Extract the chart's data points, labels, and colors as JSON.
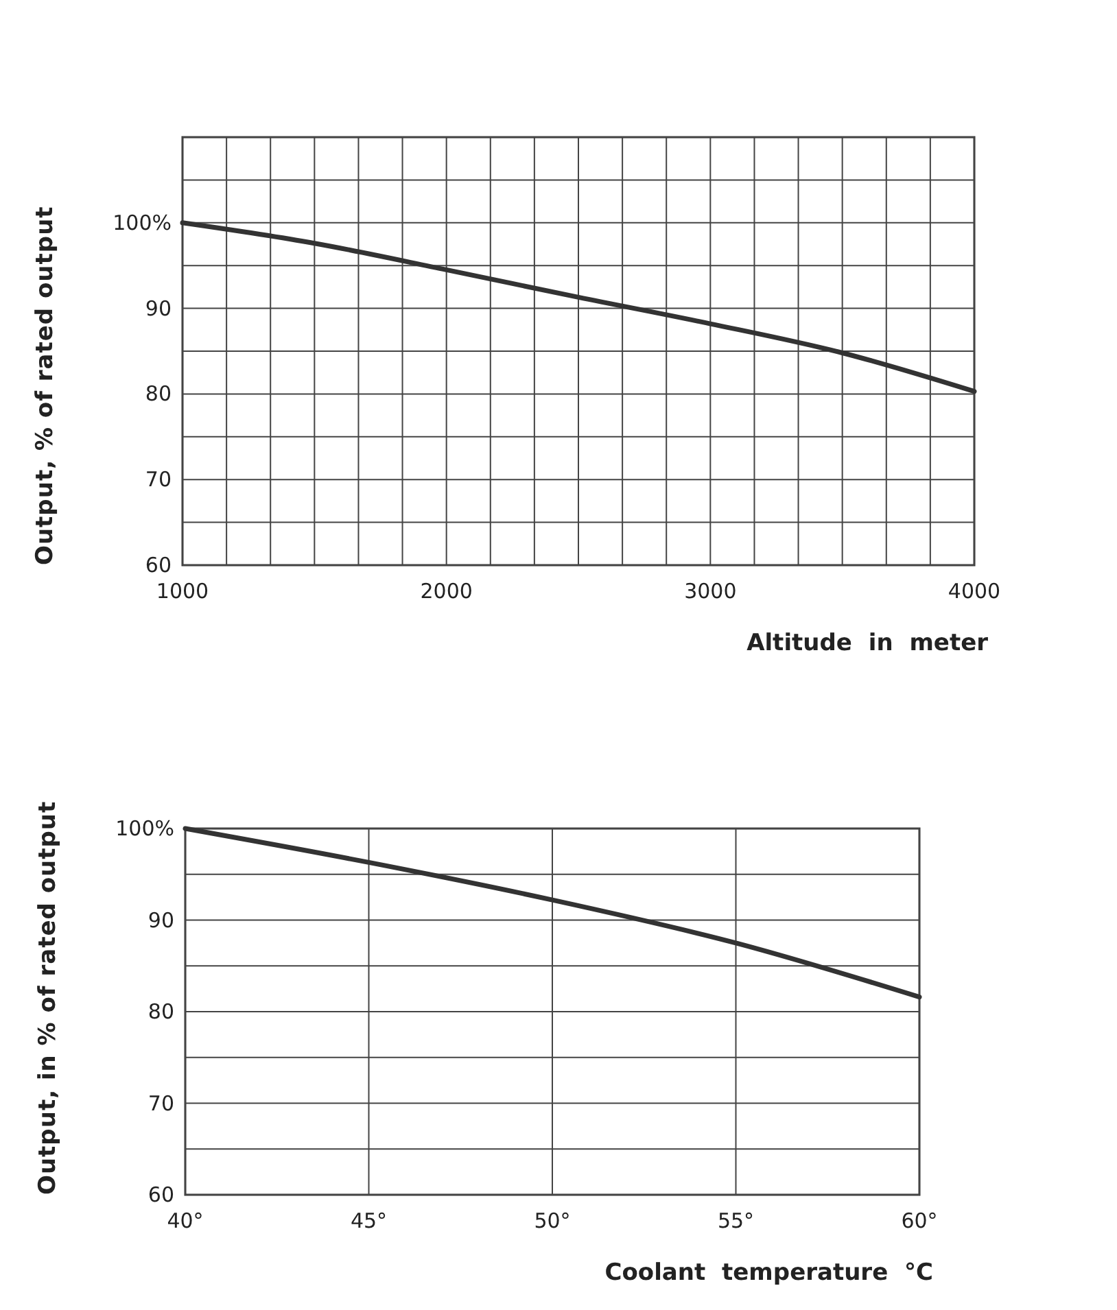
{
  "chart_data": [
    {
      "type": "line",
      "xlabel": "Altitude in meter",
      "ylabel": "Output, % of rated output",
      "x": [
        1000,
        1500,
        2000,
        2500,
        3000,
        3500,
        4000
      ],
      "series": [
        {
          "color": "#333333",
          "values": [
            100,
            97.6,
            94.5,
            91.3,
            88.2,
            84.8,
            80.3
          ]
        }
      ],
      "xlim": [
        1000,
        4000
      ],
      "xticks": [
        1000,
        {
          "value": 1166.7,
          "label": null
        },
        {
          "value": 1333.3,
          "label": null
        },
        {
          "value": 1500,
          "label": null
        },
        {
          "value": 1666.7,
          "label": null
        },
        {
          "value": 1833.3,
          "label": null
        },
        2000,
        {
          "value": 2166.7,
          "label": null
        },
        {
          "value": 2333.3,
          "label": null
        },
        {
          "value": 2500,
          "label": null
        },
        {
          "value": 2666.7,
          "label": null
        },
        {
          "value": 2833.3,
          "label": null
        },
        3000,
        {
          "value": 3166.7,
          "label": null
        },
        {
          "value": 3333.3,
          "label": null
        },
        {
          "value": 3500,
          "label": null
        },
        {
          "value": 3666.7,
          "label": null
        },
        {
          "value": 3833.3,
          "label": null
        },
        4000
      ],
      "ylim": [
        60,
        110
      ],
      "yticks": [
        60,
        {
          "value": 65,
          "label": null
        },
        70,
        {
          "value": 75,
          "label": null
        },
        80,
        {
          "value": 85,
          "label": null
        },
        90,
        {
          "value": 95,
          "label": null
        },
        {
          "value": 100,
          "label": "100%"
        },
        {
          "value": 105,
          "label": null
        },
        {
          "value": 110,
          "label": null
        }
      ],
      "grid": true,
      "marker": "none",
      "line_style": "solid"
    },
    {
      "type": "line",
      "xlabel": "Coolant temperature °C",
      "ylabel": "Output, in % of rated output",
      "x": [
        40,
        45,
        50,
        55,
        60
      ],
      "series": [
        {
          "color": "#333333",
          "values": [
            100,
            96.3,
            92.2,
            87.5,
            81.6
          ]
        }
      ],
      "xlim": [
        40,
        60
      ],
      "xticks": [
        {
          "value": 40,
          "label": "40°"
        },
        {
          "value": 45,
          "label": "45°"
        },
        {
          "value": 50,
          "label": "50°"
        },
        {
          "value": 55,
          "label": "55°"
        },
        {
          "value": 60,
          "label": "60°"
        }
      ],
      "ylim": [
        60,
        100
      ],
      "yticks": [
        60,
        {
          "value": 65,
          "label": null
        },
        70,
        {
          "value": 75,
          "label": null
        },
        80,
        {
          "value": 85,
          "label": null
        },
        90,
        {
          "value": 95,
          "label": null
        },
        {
          "value": 100,
          "label": "100%"
        }
      ],
      "grid": true,
      "marker": "none",
      "line_style": "solid"
    }
  ]
}
